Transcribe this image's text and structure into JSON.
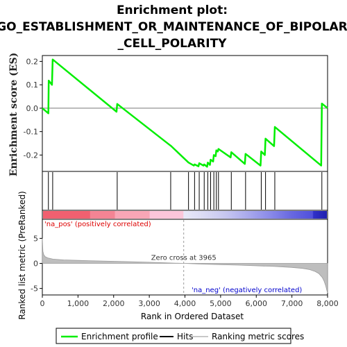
{
  "title_lines": [
    "Enrichment plot:",
    "GO_ESTABLISHMENT_OR_MAINTENANCE_OF_BIPOLAR",
    "_CELL_POLARITY"
  ],
  "colors": {
    "es_line": "#00ee00",
    "hit_line": "#000000",
    "metric_fill": "#bebebe",
    "pos_label": "#dd0000",
    "neg_label": "#0000cc",
    "frame": "#000000"
  },
  "chart_data": {
    "type": "line",
    "x_range": [
      0,
      8000
    ],
    "n_genes": 8000,
    "x_ticks": [
      0,
      1000,
      2000,
      3000,
      4000,
      5000,
      6000,
      7000,
      8000
    ],
    "x_tick_labels": [
      "0",
      "1,000",
      "2,000",
      "3,000",
      "4,000",
      "5,000",
      "6,000",
      "7,000",
      "8,000"
    ],
    "xlabel": "Rank in Ordered Dataset",
    "es_panel": {
      "ylabel": "Enrichment score (ES)",
      "ylim": [
        -0.27,
        0.225
      ],
      "y_ticks": [
        0.2,
        0.1,
        0.0,
        -0.1,
        -0.2
      ],
      "y_tick_labels": [
        "0.2",
        "0.1",
        "0.0",
        "-0.1",
        "-0.2"
      ],
      "points": [
        [
          0,
          0.0
        ],
        [
          170,
          -0.022
        ],
        [
          180,
          0.118
        ],
        [
          270,
          0.1
        ],
        [
          290,
          0.208
        ],
        [
          2080,
          -0.015
        ],
        [
          2100,
          0.018
        ],
        [
          3580,
          -0.158
        ],
        [
          3600,
          -0.16
        ],
        [
          4100,
          -0.232
        ],
        [
          4250,
          -0.245
        ],
        [
          4270,
          -0.24
        ],
        [
          4380,
          -0.248
        ],
        [
          4400,
          -0.235
        ],
        [
          4520,
          -0.245
        ],
        [
          4540,
          -0.24
        ],
        [
          4620,
          -0.25
        ],
        [
          4640,
          -0.232
        ],
        [
          4700,
          -0.242
        ],
        [
          4720,
          -0.22
        ],
        [
          4790,
          -0.228
        ],
        [
          4810,
          -0.2
        ],
        [
          4860,
          -0.205
        ],
        [
          4880,
          -0.18
        ],
        [
          4920,
          -0.185
        ],
        [
          4940,
          -0.174
        ],
        [
          5280,
          -0.21
        ],
        [
          5300,
          -0.188
        ],
        [
          5680,
          -0.238
        ],
        [
          5700,
          -0.195
        ],
        [
          6120,
          -0.245
        ],
        [
          6140,
          -0.185
        ],
        [
          6240,
          -0.2
        ],
        [
          6260,
          -0.13
        ],
        [
          6500,
          -0.162
        ],
        [
          6520,
          -0.08
        ],
        [
          7820,
          -0.245
        ],
        [
          7840,
          0.02
        ],
        [
          8000,
          0.0
        ]
      ]
    },
    "hits": [
      170,
      290,
      2100,
      3600,
      4100,
      4270,
      4400,
      4540,
      4640,
      4720,
      4810,
      4880,
      4940,
      5300,
      5700,
      6140,
      6260,
      6520,
      7840
    ],
    "gradient_stops": [
      {
        "at": 0,
        "color": "#f06070"
      },
      {
        "at": 1320,
        "color": "#f06070"
      },
      {
        "at": 1330,
        "color": "#f48494"
      },
      {
        "at": 2020,
        "color": "#f48494"
      },
      {
        "at": 2030,
        "color": "#f8a6b6"
      },
      {
        "at": 3000,
        "color": "#f8a6b6"
      },
      {
        "at": 3010,
        "color": "#fbc6da"
      },
      {
        "at": 3950,
        "color": "#fbc6da"
      },
      {
        "at": 3965,
        "color": "#e8e8f8"
      },
      {
        "at": 4500,
        "color": "#dcdcf4"
      },
      {
        "at": 5200,
        "color": "#c4c4f0"
      },
      {
        "at": 5800,
        "color": "#a8a8ec"
      },
      {
        "at": 6400,
        "color": "#8a8ae8"
      },
      {
        "at": 7000,
        "color": "#6868e0"
      },
      {
        "at": 7600,
        "color": "#5050dc"
      },
      {
        "at": 7620,
        "color": "#3030c8"
      },
      {
        "at": 7980,
        "color": "#2020b0"
      }
    ],
    "metric_panel": {
      "ylabel": "Ranked list metric (PreRanked)",
      "ylim": [
        -6.3,
        8.8
      ],
      "y_ticks": [
        5,
        0,
        -5
      ],
      "y_tick_labels": [
        "5",
        "0",
        "-5"
      ],
      "zero_cross": 3965,
      "zero_cross_label": "Zero cross at 3965",
      "pos_label": "'na_pos' (positively correlated)",
      "neg_label": "'na_neg' (negatively correlated)",
      "profile": [
        [
          0,
          5.0
        ],
        [
          15,
          2.4
        ],
        [
          40,
          1.7
        ],
        [
          80,
          1.35
        ],
        [
          150,
          1.1
        ],
        [
          300,
          0.85
        ],
        [
          600,
          0.7
        ],
        [
          1000,
          0.6
        ],
        [
          1500,
          0.5
        ],
        [
          2000,
          0.42
        ],
        [
          2500,
          0.33
        ],
        [
          3000,
          0.22
        ],
        [
          3500,
          0.1
        ],
        [
          3965,
          0.0
        ],
        [
          4500,
          -0.15
        ],
        [
          5000,
          -0.25
        ],
        [
          5500,
          -0.35
        ],
        [
          6000,
          -0.48
        ],
        [
          6500,
          -0.6
        ],
        [
          7000,
          -0.8
        ],
        [
          7300,
          -1.0
        ],
        [
          7500,
          -1.25
        ],
        [
          7650,
          -1.6
        ],
        [
          7750,
          -2.0
        ],
        [
          7850,
          -2.8
        ],
        [
          7900,
          -3.5
        ],
        [
          7950,
          -4.5
        ],
        [
          7980,
          -5.4
        ],
        [
          8000,
          -5.9
        ]
      ]
    }
  },
  "legend": {
    "items": [
      {
        "label": "Enrichment profile",
        "color": "#00ee00"
      },
      {
        "label": "Hits",
        "color": "#000000"
      },
      {
        "label": "Ranking metric scores",
        "color": "#c8c8c8"
      }
    ]
  }
}
